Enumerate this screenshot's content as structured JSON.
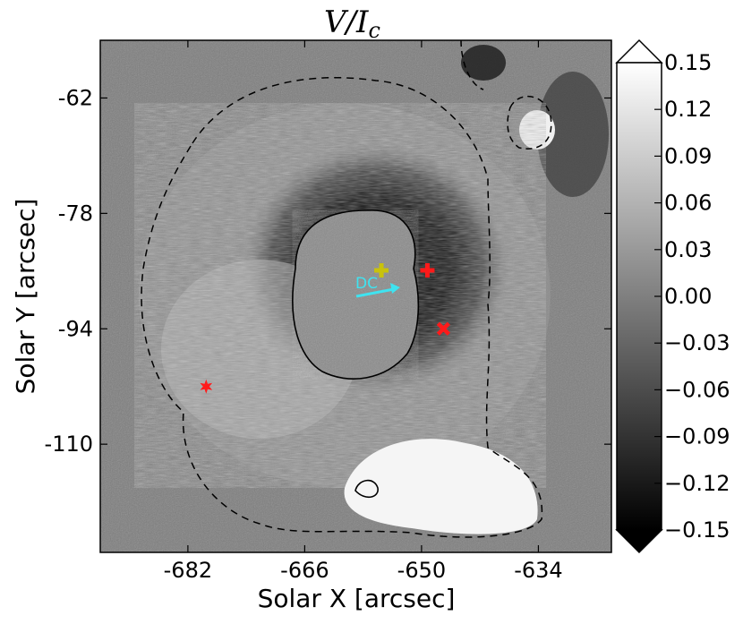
{
  "figure": {
    "title_main": "V/I",
    "title_sub": "c",
    "xlabel": "Solar X [arcsec]",
    "ylabel": "Solar Y [arcsec]",
    "x_ticks": [
      "-682",
      "-666",
      "-650",
      "-634"
    ],
    "y_ticks": [
      "-62",
      "-78",
      "-94",
      "-110"
    ],
    "x_range": [
      -694,
      -624
    ],
    "y_range": [
      -125,
      -54
    ],
    "colorbar": {
      "ticks": [
        "0.15",
        "0.12",
        "0.09",
        "0.06",
        "0.03",
        "0.00",
        "−0.03",
        "−0.06",
        "−0.09",
        "−0.12",
        "−0.15"
      ],
      "range": [
        -0.15,
        0.15
      ],
      "colormap": "gray"
    },
    "annotation": {
      "label": "DC",
      "color": "#3fe3f0"
    },
    "markers": [
      {
        "name": "yellow-plus-marker",
        "symbol": "plus",
        "color": "#c9c20b",
        "x": -655.5,
        "y": -85.9
      },
      {
        "name": "red-plus-marker",
        "symbol": "plus",
        "color": "#ff1a1a",
        "x": -649.2,
        "y": -85.9
      },
      {
        "name": "red-x-marker",
        "symbol": "x",
        "color": "#ff1a1a",
        "x": -647.0,
        "y": -94.0
      },
      {
        "name": "red-star-marker",
        "symbol": "star",
        "color": "#ff1a1a",
        "x": -679.5,
        "y": -102.0
      }
    ]
  }
}
